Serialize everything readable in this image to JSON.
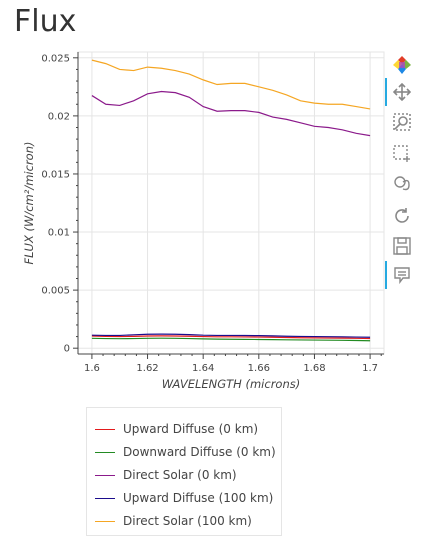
{
  "page": {
    "title": "Flux"
  },
  "toolbar": {
    "tools": [
      {
        "name": "bokeh-logo-icon",
        "interactable": false
      },
      {
        "name": "pan-icon",
        "interactable": true,
        "active": true
      },
      {
        "name": "box-zoom-icon",
        "interactable": true
      },
      {
        "name": "box-select-icon",
        "interactable": true
      },
      {
        "name": "lasso-select-icon",
        "interactable": true
      },
      {
        "name": "reset-icon",
        "interactable": true
      },
      {
        "name": "save-icon",
        "interactable": true
      },
      {
        "name": "hover-icon",
        "interactable": true,
        "active": true
      }
    ]
  },
  "chart_data": {
    "type": "line",
    "title": "Flux",
    "xlabel": "WAVELENGTH (microns)",
    "ylabel": "FLUX (W/cm²/micron)",
    "xlim": [
      1.595,
      1.705
    ],
    "ylim": [
      -0.0005,
      0.0255
    ],
    "xticks": [
      1.6,
      1.62,
      1.64,
      1.66,
      1.68,
      1.7
    ],
    "xtick_labels": [
      "1.6",
      "1.62",
      "1.64",
      "1.66",
      "1.68",
      "1.7"
    ],
    "yticks": [
      0,
      0.005,
      0.01,
      0.015,
      0.02,
      0.025
    ],
    "ytick_labels": [
      "0",
      "0.005",
      "0.01",
      "0.015",
      "0.02",
      "0.025"
    ],
    "grid": true,
    "legend_position": "bottom-left",
    "x": [
      1.6,
      1.605,
      1.61,
      1.615,
      1.62,
      1.625,
      1.63,
      1.635,
      1.64,
      1.645,
      1.65,
      1.655,
      1.66,
      1.665,
      1.67,
      1.675,
      1.68,
      1.685,
      1.69,
      1.695,
      1.7
    ],
    "series": [
      {
        "name": "Upward Diffuse (0 km)",
        "color": "#e31a1c",
        "values": [
          0.00105,
          0.00102,
          0.001,
          0.00102,
          0.00105,
          0.00106,
          0.00105,
          0.00103,
          0.001,
          0.00098,
          0.00098,
          0.00097,
          0.00096,
          0.00094,
          0.00092,
          0.0009,
          0.00089,
          0.00088,
          0.00087,
          0.00085,
          0.00083
        ]
      },
      {
        "name": "Downward Diffuse (0 km)",
        "color": "#238b23",
        "values": [
          0.00085,
          0.00083,
          0.00082,
          0.00083,
          0.00085,
          0.00086,
          0.00085,
          0.00083,
          0.0008,
          0.00078,
          0.00077,
          0.00076,
          0.00075,
          0.00074,
          0.00072,
          0.00071,
          0.0007,
          0.00069,
          0.00068,
          0.00066,
          0.00064
        ]
      },
      {
        "name": "Direct Solar (0 km)",
        "color": "#8b1a8b",
        "values": [
          0.02175,
          0.021,
          0.0209,
          0.0213,
          0.0219,
          0.0221,
          0.022,
          0.0216,
          0.0208,
          0.0204,
          0.02045,
          0.02045,
          0.0203,
          0.0199,
          0.0197,
          0.0194,
          0.0191,
          0.019,
          0.0188,
          0.0185,
          0.0183
        ]
      },
      {
        "name": "Upward Diffuse (100 km)",
        "color": "#1b0c8c",
        "values": [
          0.00112,
          0.0011,
          0.0011,
          0.00115,
          0.0012,
          0.00121,
          0.0012,
          0.00117,
          0.00112,
          0.0011,
          0.0011,
          0.00109,
          0.00108,
          0.00106,
          0.00103,
          0.00101,
          0.001,
          0.00099,
          0.00098,
          0.00096,
          0.00094
        ]
      },
      {
        "name": "Direct Solar (100 km)",
        "color": "#f5a623",
        "values": [
          0.0248,
          0.0245,
          0.024,
          0.0239,
          0.0242,
          0.0241,
          0.0239,
          0.0236,
          0.0231,
          0.0227,
          0.0228,
          0.0228,
          0.0225,
          0.0222,
          0.0218,
          0.0213,
          0.0211,
          0.021,
          0.021,
          0.0208,
          0.0206
        ]
      }
    ]
  }
}
